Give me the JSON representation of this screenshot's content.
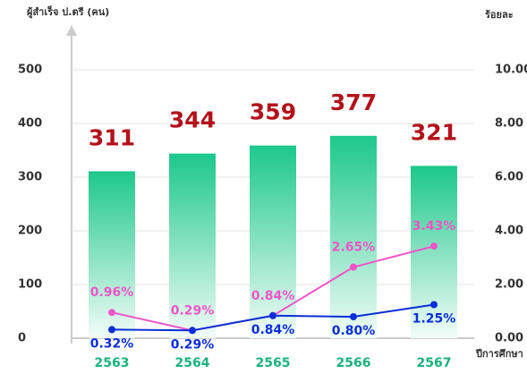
{
  "chart_data": {
    "type": "bar",
    "y_label": "ผู้สำเร็จ ป.ตรี (คน)",
    "y2_label": "ร้อยละ",
    "x_label": "ปีการศึกษา",
    "categories": [
      "2563",
      "2564",
      "2565",
      "2566",
      "2567"
    ],
    "values": [
      311,
      344,
      359,
      377,
      321
    ],
    "color": "#1dc88a",
    "ylim": [
      0,
      500
    ],
    "yticks": [
      0,
      100,
      200,
      300,
      400,
      500
    ],
    "y2lim": [
      0,
      10
    ],
    "y2ticks": [
      {
        "value": 0,
        "label": "0.00"
      },
      {
        "value": 2,
        "label": "2.00"
      },
      {
        "value": 4,
        "label": "4.00"
      },
      {
        "value": 6,
        "label": "6.00"
      },
      {
        "value": 8,
        "label": "8.00"
      },
      {
        "value": 10,
        "label": "10.00"
      }
    ],
    "grid": true,
    "series": [
      {
        "color": "#f055c8",
        "axis": "y2",
        "values": [
          0.96,
          0.29,
          0.84,
          2.65,
          3.43
        ],
        "value_labels": [
          "0.96%",
          "0.29%",
          "0.84%",
          "2.65%",
          "3.43%"
        ]
      },
      {
        "color": "#0a2fd6",
        "axis": "y2",
        "values": [
          0.32,
          0.29,
          0.84,
          0.8,
          1.25
        ],
        "value_labels": [
          "0.32%",
          "0.29%",
          "0.84%",
          "0.80%",
          "1.25%"
        ]
      }
    ]
  }
}
